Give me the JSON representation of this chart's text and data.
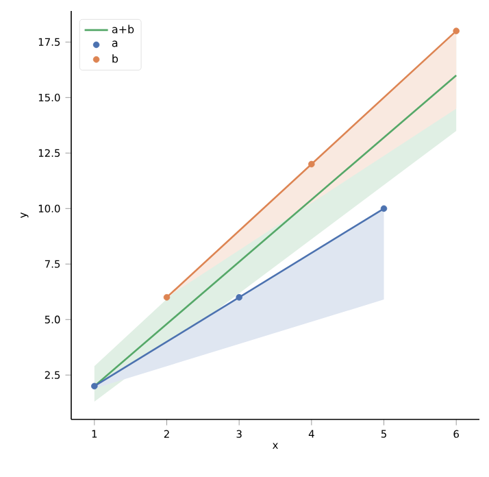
{
  "chart_data": {
    "type": "line",
    "xlabel": "x",
    "ylabel": "y",
    "xlim": [
      0.68,
      6.32
    ],
    "ylim": [
      0.5,
      18.9
    ],
    "xticks": [
      1,
      2,
      3,
      4,
      5,
      6
    ],
    "yticks": [
      {
        "value": 2.5,
        "label": "2.5"
      },
      {
        "value": 5,
        "label": "5.0"
      },
      {
        "value": 7.5,
        "label": "7.5"
      },
      {
        "value": 10,
        "label": "10.0"
      },
      {
        "value": 12.5,
        "label": "12.5"
      },
      {
        "value": 15,
        "label": "15.0"
      },
      {
        "value": 17.5,
        "label": "17.5"
      }
    ],
    "legend": "top left",
    "grid": false,
    "series": [
      {
        "name": "a+b",
        "color": "#55a868",
        "x": [
          1,
          6
        ],
        "values": [
          2,
          16
        ],
        "lower": [
          1.3,
          13.5
        ],
        "upper": [
          2.9,
          18
        ]
      },
      {
        "name": "a",
        "type": "scatter",
        "color": "#4c72b0",
        "x": [
          1,
          3,
          5
        ],
        "values": [
          2,
          6,
          10
        ]
      },
      {
        "name": "b",
        "type": "scatter",
        "color": "#dd8452",
        "x": [
          2,
          4,
          6
        ],
        "values": [
          6,
          12,
          18
        ]
      },
      {
        "color": "#4c72b0",
        "x": [
          1,
          5
        ],
        "values": [
          2,
          10
        ],
        "lower": [
          1.9,
          5.9
        ],
        "upper": [
          2,
          10
        ]
      },
      {
        "color": "#dd8452",
        "x": [
          2,
          6
        ],
        "values": [
          6,
          18
        ],
        "lower": [
          6,
          14.5
        ],
        "upper": [
          6,
          18
        ]
      }
    ]
  }
}
